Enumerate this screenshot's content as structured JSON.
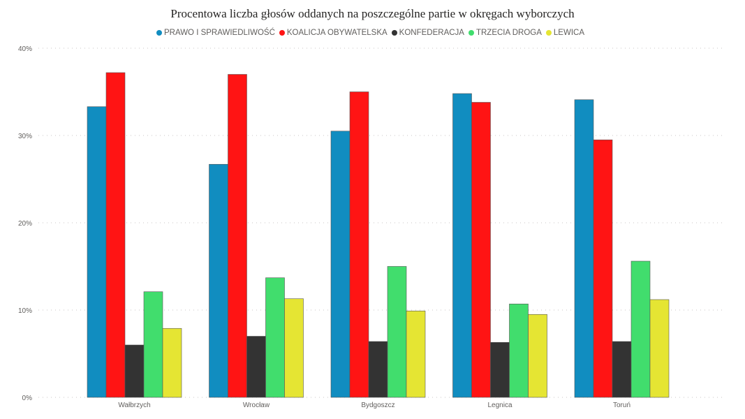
{
  "chart_data": {
    "type": "bar",
    "title": "Procentowa liczba głosów oddanych na poszczególne partie w okręgach wyborczych",
    "categories": [
      "Wałbrzych",
      "Wrocław",
      "Bydgoszcz",
      "Legnica",
      "Toruń"
    ],
    "series": [
      {
        "name": "PRAWO I SPRAWIEDLIWOŚĆ",
        "color": "#118DC0",
        "values": [
          33.3,
          26.7,
          30.5,
          34.8,
          34.1
        ]
      },
      {
        "name": "KOALICJA OBYWATELSKA",
        "color": "#FF1414",
        "values": [
          37.2,
          37.0,
          35.0,
          33.8,
          29.5
        ]
      },
      {
        "name": "KONFEDERACJA",
        "color": "#333333",
        "values": [
          6.0,
          7.0,
          6.4,
          6.3,
          6.4
        ]
      },
      {
        "name": "TRZECIA DROGA",
        "color": "#41DD6D",
        "values": [
          12.1,
          13.7,
          15.0,
          10.7,
          15.6
        ]
      },
      {
        "name": "LEWICA",
        "color": "#E5E533",
        "values": [
          7.9,
          11.3,
          9.9,
          9.5,
          11.2
        ]
      }
    ],
    "yticks": [
      "0%",
      "10%",
      "20%",
      "30%",
      "40%"
    ],
    "ylim": [
      0,
      40
    ],
    "grid": true,
    "legend_position": "top-center"
  }
}
